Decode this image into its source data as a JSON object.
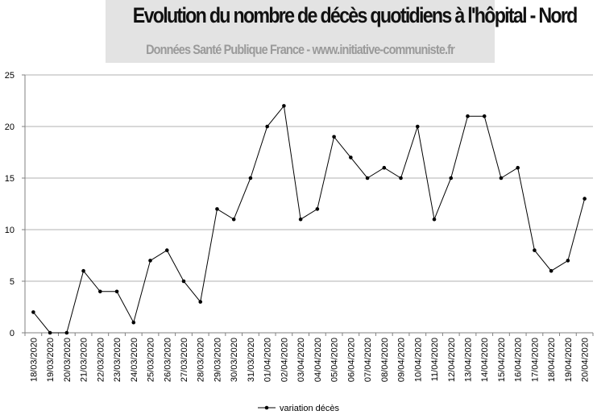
{
  "chart_data": {
    "type": "line",
    "title": "Evolution du nombre de décès quotidiens  à l'hôpital - Nord",
    "subtitle": "Données Santé Publique France - www.initiative-communiste.fr",
    "xlabel": "",
    "ylabel": "",
    "ylim": [
      0,
      25
    ],
    "yticks": [
      0,
      5,
      10,
      15,
      20,
      25
    ],
    "grid": true,
    "legend_position": "bottom",
    "categories": [
      "18/03/2020",
      "19/03/2020",
      "20/03/2020",
      "21/03/2020",
      "22/03/2020",
      "23/03/2020",
      "24/03/2020",
      "25/03/2020",
      "26/03/2020",
      "27/03/2020",
      "28/03/2020",
      "29/03/2020",
      "30/03/2020",
      "31/03/2020",
      "01/04/2020",
      "02/04/2020",
      "03/04/2020",
      "04/04/2020",
      "05/04/2020",
      "06/04/2020",
      "07/04/2020",
      "08/04/2020",
      "09/04/2020",
      "10/04/2020",
      "11/04/2020",
      "12/04/2020",
      "13/04/2020",
      "14/04/2020",
      "15/04/2020",
      "16/04/2020",
      "17/04/2020",
      "18/04/2020",
      "19/04/2020",
      "20/04/2020"
    ],
    "series": [
      {
        "name": "variation décès",
        "color": "#000000",
        "values": [
          2,
          0,
          0,
          6,
          4,
          4,
          1,
          7,
          8,
          5,
          3,
          12,
          11,
          15,
          20,
          22,
          11,
          12,
          19,
          17,
          15,
          16,
          15,
          20,
          11,
          15,
          21,
          21,
          15,
          16,
          8,
          6,
          7,
          13
        ]
      }
    ]
  },
  "colors": {
    "grid": "#b0b0b0",
    "axis": "#808080",
    "line": "#000000",
    "title_bg": "#e3e3e3"
  }
}
